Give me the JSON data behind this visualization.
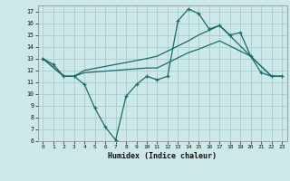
{
  "xlabel": "Humidex (Indice chaleur)",
  "bg_color": "#cce8e8",
  "grid_color": "#aacccc",
  "line_color": "#1a6b6b",
  "xlim": [
    -0.5,
    23.5
  ],
  "ylim": [
    6,
    17.5
  ],
  "xticks": [
    0,
    1,
    2,
    3,
    4,
    5,
    6,
    7,
    8,
    9,
    10,
    11,
    12,
    13,
    14,
    15,
    16,
    17,
    18,
    19,
    20,
    21,
    22,
    23
  ],
  "yticks": [
    6,
    7,
    8,
    9,
    10,
    11,
    12,
    13,
    14,
    15,
    16,
    17
  ],
  "line1_x": [
    0,
    1,
    2,
    3,
    4,
    5,
    6,
    7,
    8,
    9,
    10,
    11,
    12,
    13,
    14,
    15,
    16,
    17,
    18,
    19,
    20,
    21,
    22,
    23
  ],
  "line1_y": [
    13,
    12.5,
    11.5,
    11.5,
    10.8,
    8.8,
    7.2,
    6.1,
    9.8,
    10.8,
    11.5,
    11.2,
    11.5,
    16.2,
    17.2,
    16.8,
    15.5,
    15.8,
    15.0,
    15.2,
    13.2,
    11.8,
    11.5,
    11.5
  ],
  "line2_x": [
    0,
    2,
    3,
    4,
    10,
    11,
    14,
    15,
    17,
    20,
    22,
    23
  ],
  "line2_y": [
    13,
    11.5,
    11.5,
    12.0,
    13.0,
    13.2,
    14.5,
    15.0,
    15.8,
    13.2,
    11.5,
    11.5
  ],
  "line3_x": [
    0,
    2,
    3,
    4,
    10,
    11,
    14,
    15,
    17,
    20,
    22,
    23
  ],
  "line3_y": [
    13,
    11.5,
    11.5,
    11.8,
    12.2,
    12.2,
    13.5,
    13.8,
    14.5,
    13.2,
    11.5,
    11.5
  ]
}
